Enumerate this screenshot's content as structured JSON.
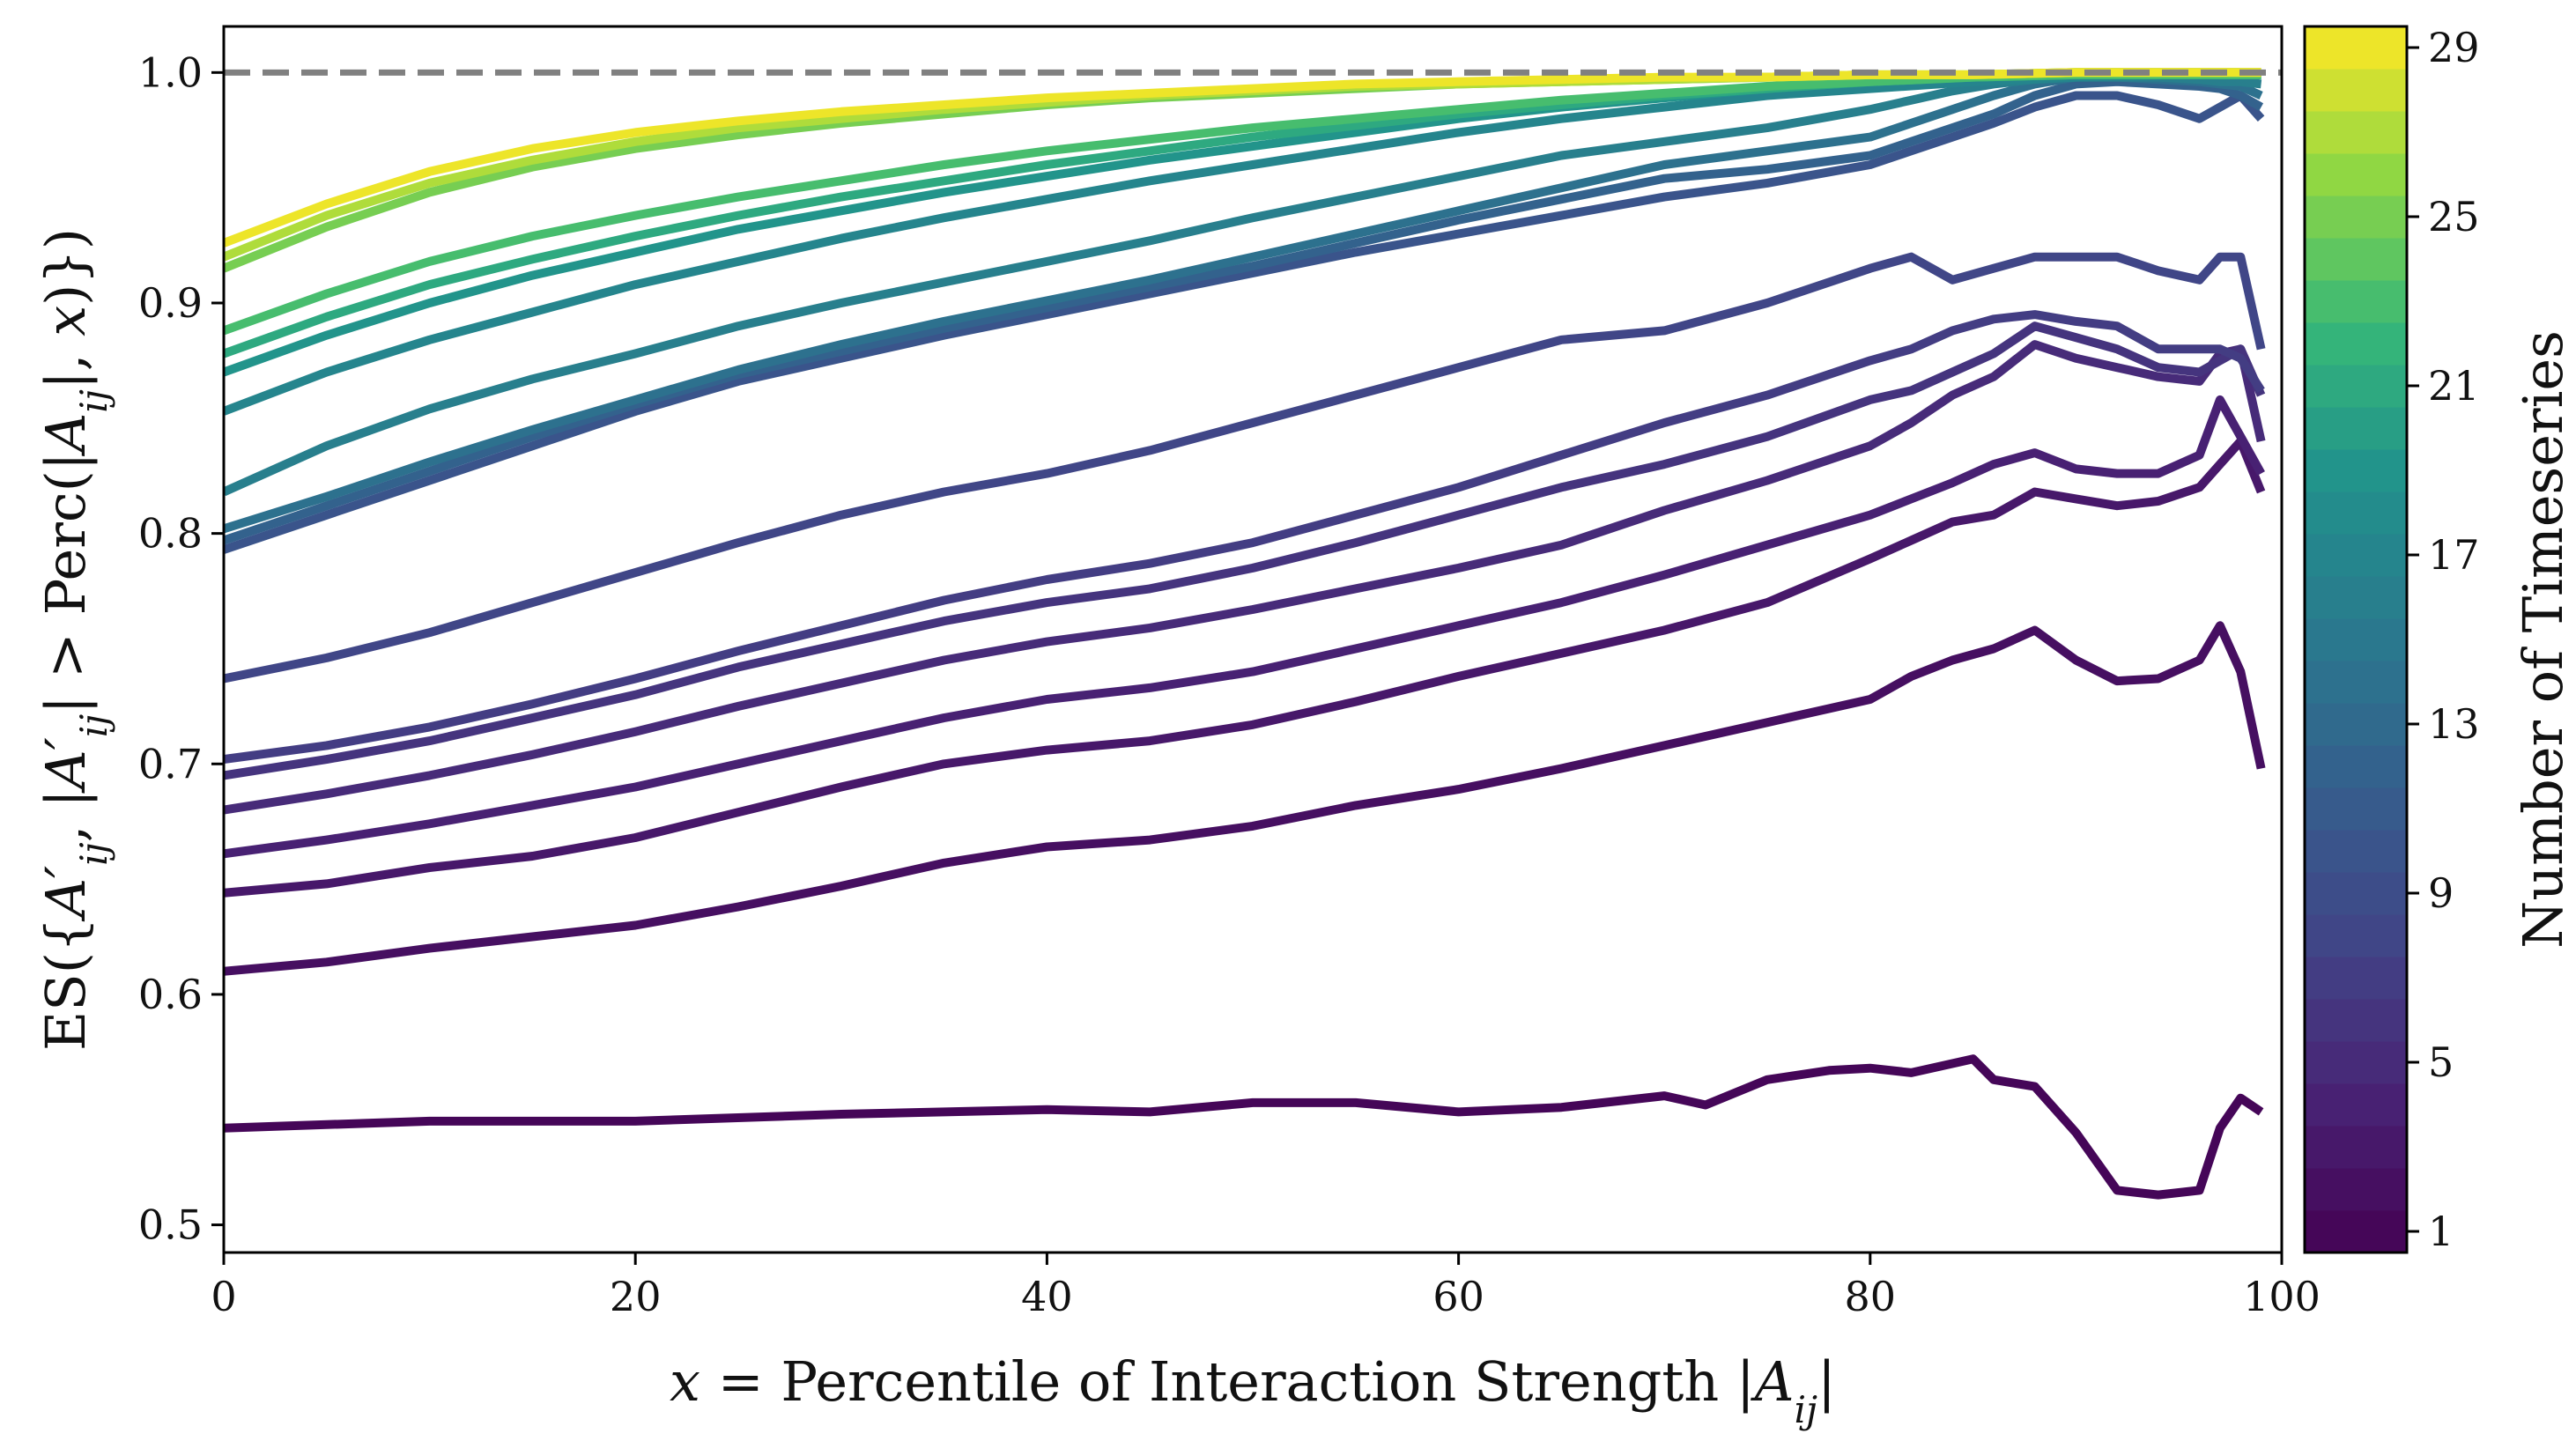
{
  "chart_data": {
    "type": "line",
    "xlabel": "x = Percentile of Interaction Strength |A_ij|",
    "ylabel": "ES({A'_ij, |A'_ij| > Perc(|A_ij|, x)})",
    "xlim": [
      0,
      100
    ],
    "ylim": [
      0.488,
      1.02
    ],
    "x_ticks": [
      "0",
      "20",
      "40",
      "60",
      "80",
      "100"
    ],
    "y_ticks": [
      "0.5",
      "0.6",
      "0.7",
      "0.8",
      "0.9",
      "1.0"
    ],
    "reference_line": {
      "y": 1.0,
      "style": "dashed",
      "color": "#808080"
    },
    "colorbar": {
      "label": "Number of Timeseries",
      "colormap": "viridis",
      "range": [
        0.5,
        29.5
      ],
      "ticks": [
        "1",
        "5",
        "9",
        "13",
        "17",
        "21",
        "25",
        "29"
      ]
    },
    "series": [
      {
        "n": 1,
        "x": [
          0,
          10,
          20,
          30,
          40,
          45,
          50,
          55,
          60,
          65,
          70,
          72,
          75,
          78,
          80,
          82,
          85,
          86,
          88,
          90,
          92,
          94,
          96,
          97,
          98,
          99
        ],
        "y": [
          0.542,
          0.545,
          0.545,
          0.548,
          0.55,
          0.549,
          0.553,
          0.553,
          0.549,
          0.551,
          0.556,
          0.552,
          0.563,
          0.567,
          0.568,
          0.566,
          0.572,
          0.563,
          0.56,
          0.54,
          0.515,
          0.513,
          0.515,
          0.542,
          0.555,
          0.549
        ]
      },
      {
        "n": 2,
        "x": [
          0,
          5,
          10,
          15,
          20,
          25,
          30,
          35,
          40,
          45,
          50,
          55,
          60,
          65,
          70,
          75,
          80,
          82,
          84,
          86,
          88,
          90,
          92,
          94,
          96,
          97,
          98,
          99
        ],
        "y": [
          0.61,
          0.614,
          0.62,
          0.625,
          0.63,
          0.638,
          0.647,
          0.657,
          0.664,
          0.667,
          0.673,
          0.682,
          0.689,
          0.698,
          0.708,
          0.718,
          0.728,
          0.738,
          0.745,
          0.75,
          0.758,
          0.745,
          0.736,
          0.737,
          0.745,
          0.76,
          0.74,
          0.698
        ]
      },
      {
        "n": 3,
        "x": [
          0,
          5,
          10,
          15,
          20,
          25,
          30,
          35,
          40,
          45,
          50,
          55,
          60,
          65,
          70,
          75,
          80,
          82,
          84,
          86,
          88,
          90,
          92,
          94,
          96,
          97,
          98,
          99
        ],
        "y": [
          0.644,
          0.648,
          0.655,
          0.66,
          0.668,
          0.679,
          0.69,
          0.7,
          0.706,
          0.71,
          0.717,
          0.727,
          0.738,
          0.748,
          0.758,
          0.77,
          0.789,
          0.797,
          0.805,
          0.808,
          0.818,
          0.815,
          0.812,
          0.814,
          0.82,
          0.83,
          0.84,
          0.818
        ]
      },
      {
        "n": 4,
        "x": [
          0,
          5,
          10,
          15,
          20,
          25,
          30,
          35,
          40,
          45,
          50,
          55,
          60,
          65,
          70,
          75,
          80,
          82,
          84,
          86,
          88,
          90,
          92,
          94,
          96,
          97,
          98,
          99
        ],
        "y": [
          0.661,
          0.667,
          0.674,
          0.682,
          0.69,
          0.7,
          0.71,
          0.72,
          0.728,
          0.733,
          0.74,
          0.75,
          0.76,
          0.77,
          0.782,
          0.795,
          0.808,
          0.815,
          0.822,
          0.83,
          0.835,
          0.828,
          0.826,
          0.826,
          0.834,
          0.858,
          0.842,
          0.826
        ]
      },
      {
        "n": 5,
        "x": [
          0,
          5,
          10,
          15,
          20,
          25,
          30,
          35,
          40,
          45,
          50,
          55,
          60,
          65,
          70,
          75,
          80,
          82,
          84,
          86,
          88,
          90,
          92,
          94,
          96,
          97,
          98,
          99
        ],
        "y": [
          0.68,
          0.687,
          0.695,
          0.704,
          0.714,
          0.725,
          0.735,
          0.745,
          0.753,
          0.759,
          0.767,
          0.776,
          0.785,
          0.795,
          0.81,
          0.823,
          0.838,
          0.848,
          0.86,
          0.868,
          0.882,
          0.876,
          0.872,
          0.868,
          0.866,
          0.878,
          0.88,
          0.84
        ]
      },
      {
        "n": 6,
        "x": [
          0,
          5,
          10,
          15,
          20,
          25,
          30,
          35,
          40,
          45,
          50,
          55,
          60,
          65,
          70,
          75,
          80,
          82,
          84,
          86,
          88,
          90,
          92,
          94,
          96,
          97,
          98,
          99
        ],
        "y": [
          0.695,
          0.702,
          0.71,
          0.72,
          0.73,
          0.742,
          0.752,
          0.762,
          0.77,
          0.776,
          0.785,
          0.796,
          0.808,
          0.82,
          0.83,
          0.842,
          0.858,
          0.862,
          0.87,
          0.878,
          0.89,
          0.885,
          0.88,
          0.872,
          0.87,
          0.875,
          0.88,
          0.86
        ]
      },
      {
        "n": 7,
        "x": [
          0,
          5,
          10,
          15,
          20,
          25,
          30,
          35,
          40,
          45,
          50,
          55,
          60,
          65,
          70,
          75,
          80,
          82,
          84,
          86,
          88,
          90,
          92,
          94,
          96,
          97,
          98,
          99
        ],
        "y": [
          0.702,
          0.708,
          0.716,
          0.726,
          0.737,
          0.749,
          0.76,
          0.771,
          0.78,
          0.787,
          0.796,
          0.808,
          0.82,
          0.834,
          0.848,
          0.86,
          0.875,
          0.88,
          0.888,
          0.893,
          0.895,
          0.892,
          0.89,
          0.88,
          0.88,
          0.88,
          0.876,
          0.862
        ]
      },
      {
        "n": 8,
        "x": [
          0,
          5,
          10,
          15,
          20,
          25,
          30,
          35,
          40,
          45,
          50,
          55,
          60,
          65,
          70,
          75,
          80,
          82,
          84,
          86,
          88,
          90,
          92,
          94,
          96,
          97,
          98,
          99
        ],
        "y": [
          0.737,
          0.746,
          0.757,
          0.77,
          0.783,
          0.796,
          0.808,
          0.818,
          0.826,
          0.836,
          0.848,
          0.86,
          0.872,
          0.884,
          0.888,
          0.9,
          0.915,
          0.92,
          0.91,
          0.915,
          0.92,
          0.92,
          0.92,
          0.914,
          0.91,
          0.92,
          0.92,
          0.88
        ]
      },
      {
        "n": 10,
        "x": [
          0,
          5,
          10,
          15,
          20,
          25,
          30,
          35,
          40,
          45,
          50,
          55,
          60,
          65,
          70,
          75,
          80,
          82,
          84,
          86,
          88,
          90,
          92,
          94,
          96,
          97,
          98,
          99
        ],
        "y": [
          0.793,
          0.808,
          0.823,
          0.838,
          0.853,
          0.866,
          0.876,
          0.886,
          0.895,
          0.904,
          0.913,
          0.922,
          0.93,
          0.938,
          0.946,
          0.952,
          0.96,
          0.966,
          0.972,
          0.978,
          0.985,
          0.99,
          0.99,
          0.986,
          0.98,
          0.985,
          0.99,
          0.98
        ]
      },
      {
        "n": 12,
        "x": [
          0,
          5,
          10,
          15,
          20,
          25,
          30,
          35,
          40,
          45,
          50,
          55,
          60,
          65,
          70,
          75,
          80,
          82,
          84,
          86,
          88,
          90,
          92,
          94,
          96,
          97,
          98,
          99
        ],
        "y": [
          0.797,
          0.812,
          0.827,
          0.842,
          0.856,
          0.869,
          0.879,
          0.889,
          0.898,
          0.907,
          0.916,
          0.926,
          0.936,
          0.945,
          0.954,
          0.958,
          0.964,
          0.97,
          0.976,
          0.982,
          0.99,
          0.995,
          0.996,
          0.995,
          0.994,
          0.993,
          0.99,
          0.985
        ]
      },
      {
        "n": 14,
        "x": [
          0,
          5,
          10,
          15,
          20,
          25,
          30,
          35,
          40,
          45,
          50,
          55,
          60,
          65,
          70,
          75,
          80,
          82,
          84,
          86,
          88,
          90,
          92,
          94,
          96,
          97,
          98,
          99
        ],
        "y": [
          0.802,
          0.816,
          0.831,
          0.845,
          0.858,
          0.871,
          0.882,
          0.892,
          0.901,
          0.91,
          0.92,
          0.93,
          0.94,
          0.95,
          0.96,
          0.966,
          0.972,
          0.978,
          0.984,
          0.99,
          0.995,
          0.998,
          0.998,
          0.997,
          0.996,
          0.995,
          0.994,
          0.99
        ]
      },
      {
        "n": 16,
        "x": [
          0,
          5,
          10,
          15,
          20,
          25,
          30,
          35,
          40,
          45,
          50,
          55,
          60,
          65,
          70,
          75,
          80,
          82,
          84,
          86,
          88,
          90,
          92,
          94,
          96,
          97,
          98,
          99
        ],
        "y": [
          0.818,
          0.838,
          0.854,
          0.867,
          0.878,
          0.89,
          0.9,
          0.909,
          0.918,
          0.927,
          0.937,
          0.946,
          0.955,
          0.964,
          0.97,
          0.976,
          0.984,
          0.988,
          0.992,
          0.995,
          0.997,
          0.998,
          0.998,
          0.998,
          0.997,
          0.996,
          0.996,
          0.995
        ]
      },
      {
        "n": 17,
        "x": [
          0,
          5,
          10,
          15,
          20,
          25,
          30,
          35,
          40,
          45,
          50,
          55,
          60,
          65,
          70,
          75,
          80,
          85,
          90,
          95,
          99
        ],
        "y": [
          0.853,
          0.87,
          0.884,
          0.896,
          0.908,
          0.918,
          0.928,
          0.937,
          0.945,
          0.953,
          0.96,
          0.967,
          0.974,
          0.98,
          0.985,
          0.99,
          0.993,
          0.996,
          0.998,
          0.999,
          0.999
        ]
      },
      {
        "n": 19,
        "x": [
          0,
          5,
          10,
          15,
          20,
          25,
          30,
          35,
          40,
          45,
          50,
          55,
          60,
          65,
          70,
          75,
          80,
          85,
          90,
          95,
          99
        ],
        "y": [
          0.87,
          0.886,
          0.9,
          0.912,
          0.922,
          0.932,
          0.94,
          0.948,
          0.955,
          0.962,
          0.968,
          0.974,
          0.98,
          0.985,
          0.989,
          0.993,
          0.996,
          0.998,
          0.999,
          0.999,
          0.999
        ]
      },
      {
        "n": 21,
        "x": [
          0,
          5,
          10,
          15,
          20,
          25,
          30,
          35,
          40,
          45,
          50,
          55,
          60,
          65,
          70,
          75,
          80,
          85,
          90,
          95,
          99
        ],
        "y": [
          0.878,
          0.894,
          0.908,
          0.919,
          0.929,
          0.938,
          0.946,
          0.953,
          0.96,
          0.966,
          0.972,
          0.977,
          0.982,
          0.986,
          0.99,
          0.993,
          0.996,
          0.998,
          0.999,
          0.999,
          0.999
        ]
      },
      {
        "n": 23,
        "x": [
          0,
          5,
          10,
          15,
          20,
          25,
          30,
          35,
          40,
          45,
          50,
          55,
          60,
          65,
          70,
          75,
          80,
          85,
          90,
          95,
          99
        ],
        "y": [
          0.888,
          0.904,
          0.918,
          0.929,
          0.938,
          0.946,
          0.953,
          0.96,
          0.966,
          0.971,
          0.976,
          0.98,
          0.984,
          0.988,
          0.991,
          0.994,
          0.996,
          0.998,
          0.999,
          0.999,
          0.999
        ]
      },
      {
        "n": 25,
        "x": [
          0,
          5,
          10,
          15,
          20,
          25,
          30,
          35,
          40,
          45,
          50,
          55,
          60,
          65,
          70,
          75,
          80,
          85,
          90,
          95,
          99
        ],
        "y": [
          0.915,
          0.933,
          0.948,
          0.959,
          0.967,
          0.973,
          0.978,
          0.982,
          0.986,
          0.989,
          0.991,
          0.993,
          0.995,
          0.996,
          0.997,
          0.998,
          0.999,
          0.999,
          1.0,
          1.0,
          1.0
        ]
      },
      {
        "n": 27,
        "x": [
          0,
          5,
          10,
          15,
          20,
          25,
          30,
          35,
          40,
          45,
          50,
          55,
          60,
          65,
          70,
          75,
          80,
          85,
          90,
          95,
          99
        ],
        "y": [
          0.92,
          0.938,
          0.952,
          0.962,
          0.97,
          0.976,
          0.98,
          0.984,
          0.987,
          0.99,
          0.992,
          0.994,
          0.995,
          0.996,
          0.997,
          0.998,
          0.999,
          0.999,
          1.0,
          1.0,
          1.0
        ]
      },
      {
        "n": 29,
        "x": [
          0,
          5,
          10,
          15,
          20,
          25,
          30,
          35,
          40,
          45,
          50,
          55,
          60,
          65,
          70,
          75,
          80,
          85,
          90,
          95,
          99
        ],
        "y": [
          0.926,
          0.943,
          0.957,
          0.967,
          0.974,
          0.979,
          0.983,
          0.986,
          0.989,
          0.991,
          0.993,
          0.995,
          0.996,
          0.997,
          0.998,
          0.998,
          0.999,
          0.999,
          1.0,
          1.0,
          1.0
        ]
      }
    ]
  }
}
